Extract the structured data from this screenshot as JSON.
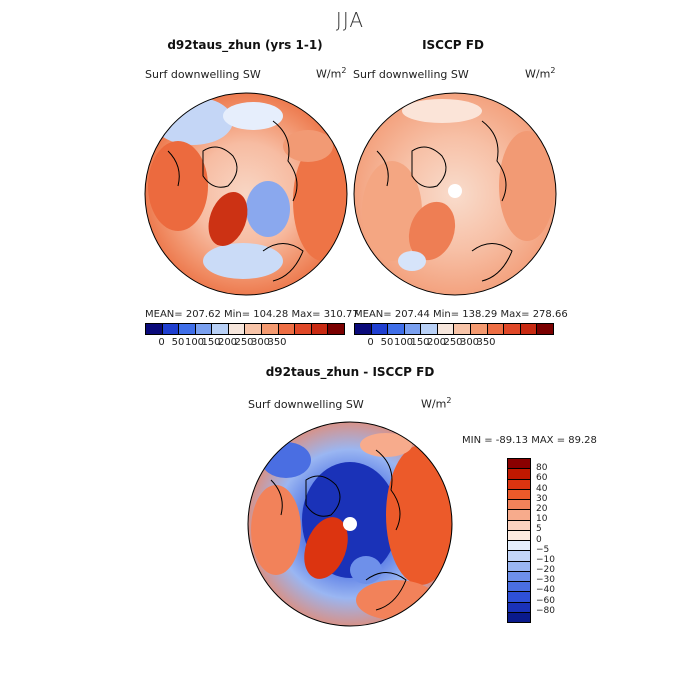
{
  "title": "JJA",
  "panels": [
    {
      "id": "model",
      "title": "d92taus_zhun (yrs 1-1)",
      "variable": "Surf downwelling SW",
      "units_base": "W/m",
      "units_exp": "2",
      "stats": "MEAN= 207.62   Min= 104.28   Max= 310.77",
      "colorbar": {
        "colors": [
          "#0a0a7a",
          "#1f3fd0",
          "#3f6ee8",
          "#7aa0f0",
          "#b8d0f6",
          "#f6e6dc",
          "#f8c4a8",
          "#f49a70",
          "#ee6e44",
          "#e04828",
          "#c82a12",
          "#7a0000"
        ],
        "ticks": [
          "0",
          "50",
          "100",
          "150",
          "200",
          "250",
          "300",
          "350"
        ]
      }
    },
    {
      "id": "obs",
      "title": "ISCCP FD",
      "variable": "Surf downwelling SW",
      "units_base": "W/m",
      "units_exp": "2",
      "stats": "MEAN= 207.44   Min= 138.29   Max= 278.66",
      "colorbar": {
        "colors": [
          "#0a0a7a",
          "#1f3fd0",
          "#3f6ee8",
          "#7aa0f0",
          "#b8d0f6",
          "#f6e6dc",
          "#f8c4a8",
          "#f49a70",
          "#ee6e44",
          "#e04828",
          "#c82a12",
          "#7a0000"
        ],
        "ticks": [
          "0",
          "50",
          "100",
          "150",
          "200",
          "250",
          "300",
          "350"
        ]
      }
    }
  ],
  "difference": {
    "title": "d92taus_zhun - ISCCP FD",
    "variable": "Surf downwelling SW",
    "units_base": "W/m",
    "units_exp": "2",
    "stats": "MIN = -89.13  MAX =  89.28",
    "colorbar": {
      "colors_top_to_bottom": [
        "#8a0000",
        "#c01800",
        "#dc3410",
        "#ec5a2a",
        "#f2825a",
        "#f7ab8c",
        "#fbd2bf",
        "#fdebe0",
        "#e4eefc",
        "#c4d6f8",
        "#9ab6f2",
        "#6e90ea",
        "#4a6ee2",
        "#2e50d8",
        "#1a32b8",
        "#0a1a8c"
      ],
      "ticks": [
        "80",
        "60",
        "40",
        "30",
        "20",
        "10",
        "5",
        "0",
        "−5",
        "−10",
        "−20",
        "−30",
        "−40",
        "−60",
        "−80"
      ]
    }
  }
}
